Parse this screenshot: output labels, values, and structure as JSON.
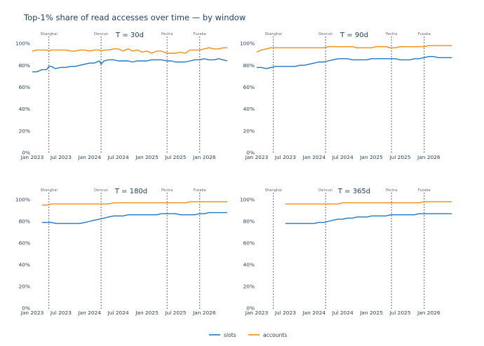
{
  "title": "Top-1% share of read accesses over time — by window",
  "colors": {
    "slots": "#1f77c4",
    "accounts": "#f08c12",
    "event_line": "#555555"
  },
  "legend": [
    {
      "key": "slots",
      "label": "slots"
    },
    {
      "key": "accounts",
      "label": "accounts"
    }
  ],
  "x_ticks": [
    {
      "label": "Jan 2023",
      "t": 2023.0
    },
    {
      "label": "Jul 2023",
      "t": 2023.5
    },
    {
      "label": "Jan 2024",
      "t": 2024.0
    },
    {
      "label": "Jul 2024",
      "t": 2024.5
    },
    {
      "label": "Jan 2025",
      "t": 2025.0
    },
    {
      "label": "Jul 2025",
      "t": 2025.5
    },
    {
      "label": "Jan 2026",
      "t": 2026.0
    }
  ],
  "y_ticks": [
    "0%",
    "20%",
    "40%",
    "60%",
    "80%",
    "100%"
  ],
  "events": [
    {
      "name": "Shanghai",
      "t": 2023.29
    },
    {
      "name": "Dencun",
      "t": 2024.2
    },
    {
      "name": "Pectra",
      "t": 2025.35
    },
    {
      "name": "Fusaka",
      "t": 2025.92
    }
  ],
  "chart_data": [
    {
      "type": "line",
      "title": "T = 30d",
      "xlim": [
        2023.0,
        2026.4
      ],
      "ylim": [
        0,
        100
      ],
      "series": [
        {
          "name": "slots",
          "x": [
            2023.0,
            2023.08,
            2023.17,
            2023.25,
            2023.29,
            2023.33,
            2023.4,
            2023.5,
            2023.58,
            2023.67,
            2023.75,
            2023.83,
            2023.92,
            2024.0,
            2024.08,
            2024.17,
            2024.2,
            2024.25,
            2024.33,
            2024.42,
            2024.5,
            2024.58,
            2024.67,
            2024.75,
            2024.83,
            2024.92,
            2025.0,
            2025.08,
            2025.17,
            2025.25,
            2025.35,
            2025.42,
            2025.5,
            2025.58,
            2025.67,
            2025.75,
            2025.83,
            2025.92,
            2026.0,
            2026.08,
            2026.17,
            2026.25,
            2026.33,
            2026.4
          ],
          "values": [
            74,
            74,
            76,
            76,
            79,
            79,
            77,
            78,
            78,
            79,
            79,
            80,
            81,
            82,
            82,
            84,
            81,
            84,
            85,
            85,
            84,
            84,
            84,
            83,
            84,
            84,
            84,
            85,
            85,
            85,
            84,
            84,
            83,
            83,
            83,
            84,
            85,
            85,
            86,
            85,
            85,
            86,
            85,
            84
          ]
        },
        {
          "name": "accounts",
          "x": [
            2023.0,
            2023.08,
            2023.17,
            2023.25,
            2023.29,
            2023.33,
            2023.4,
            2023.5,
            2023.58,
            2023.67,
            2023.75,
            2023.83,
            2023.92,
            2024.0,
            2024.08,
            2024.17,
            2024.2,
            2024.25,
            2024.33,
            2024.42,
            2024.5,
            2024.58,
            2024.67,
            2024.75,
            2024.83,
            2024.92,
            2025.0,
            2025.08,
            2025.17,
            2025.25,
            2025.35,
            2025.42,
            2025.5,
            2025.58,
            2025.67,
            2025.75,
            2025.83,
            2025.92,
            2026.0,
            2026.08,
            2026.17,
            2026.25,
            2026.33,
            2026.4
          ],
          "values": [
            93,
            94,
            94,
            94,
            93,
            94,
            94,
            94,
            94,
            93,
            93,
            94,
            94,
            93,
            94,
            94,
            93,
            94,
            94,
            95,
            95,
            93,
            95,
            93,
            94,
            92,
            93,
            91,
            93,
            93,
            91,
            91,
            91,
            92,
            91,
            94,
            94,
            94,
            95,
            96,
            95,
            95,
            96,
            96
          ]
        }
      ]
    },
    {
      "type": "line",
      "title": "T = 90d",
      "xlim": [
        2023.0,
        2026.4
      ],
      "ylim": [
        0,
        100
      ],
      "series": [
        {
          "name": "slots",
          "x": [
            2023.0,
            2023.08,
            2023.17,
            2023.25,
            2023.33,
            2023.42,
            2023.5,
            2023.58,
            2023.67,
            2023.75,
            2023.83,
            2023.92,
            2024.0,
            2024.08,
            2024.17,
            2024.25,
            2024.33,
            2024.42,
            2024.5,
            2024.58,
            2024.67,
            2024.75,
            2024.83,
            2024.92,
            2025.0,
            2025.08,
            2025.17,
            2025.25,
            2025.33,
            2025.42,
            2025.5,
            2025.58,
            2025.67,
            2025.75,
            2025.83,
            2025.92,
            2026.0,
            2026.08,
            2026.17,
            2026.25,
            2026.33,
            2026.4
          ],
          "values": [
            78,
            78,
            77,
            78,
            79,
            79,
            79,
            79,
            79,
            80,
            80,
            81,
            82,
            83,
            83,
            84,
            85,
            86,
            86,
            86,
            85,
            85,
            85,
            85,
            86,
            86,
            86,
            86,
            86,
            86,
            85,
            85,
            85,
            86,
            86,
            87,
            88,
            88,
            87,
            87,
            87,
            87
          ]
        },
        {
          "name": "accounts",
          "x": [
            2023.0,
            2023.08,
            2023.17,
            2023.25,
            2023.33,
            2023.42,
            2023.5,
            2023.58,
            2023.67,
            2023.75,
            2023.83,
            2023.92,
            2024.0,
            2024.08,
            2024.17,
            2024.25,
            2024.33,
            2024.42,
            2024.5,
            2024.58,
            2024.67,
            2024.75,
            2024.83,
            2024.92,
            2025.0,
            2025.08,
            2025.17,
            2025.25,
            2025.33,
            2025.42,
            2025.5,
            2025.58,
            2025.67,
            2025.75,
            2025.83,
            2025.92,
            2026.0,
            2026.08,
            2026.17,
            2026.25,
            2026.33,
            2026.4
          ],
          "values": [
            92,
            94,
            95,
            96,
            96,
            96,
            96,
            96,
            96,
            96,
            96,
            96,
            96,
            96,
            96,
            97,
            97,
            97,
            97,
            97,
            97,
            96,
            96,
            96,
            96,
            97,
            97,
            97,
            96,
            96,
            97,
            97,
            97,
            97,
            97,
            97,
            98,
            98,
            98,
            98,
            98,
            98
          ]
        }
      ]
    },
    {
      "type": "line",
      "title": "T = 180d",
      "xlim": [
        2023.0,
        2026.4
      ],
      "ylim": [
        0,
        100
      ],
      "series": [
        {
          "name": "slots",
          "x": [
            2023.17,
            2023.25,
            2023.33,
            2023.42,
            2023.5,
            2023.58,
            2023.67,
            2023.75,
            2023.83,
            2023.92,
            2024.0,
            2024.08,
            2024.17,
            2024.25,
            2024.33,
            2024.42,
            2024.5,
            2024.58,
            2024.67,
            2024.75,
            2024.83,
            2024.92,
            2025.0,
            2025.08,
            2025.17,
            2025.25,
            2025.33,
            2025.42,
            2025.5,
            2025.58,
            2025.67,
            2025.75,
            2025.83,
            2025.92,
            2026.0,
            2026.08,
            2026.17,
            2026.25,
            2026.33,
            2026.4
          ],
          "values": [
            79,
            79,
            79,
            78,
            78,
            78,
            78,
            78,
            78,
            79,
            80,
            81,
            82,
            83,
            84,
            85,
            85,
            85,
            86,
            86,
            86,
            86,
            86,
            86,
            86,
            87,
            87,
            87,
            87,
            86,
            86,
            86,
            86,
            87,
            87,
            88,
            88,
            88,
            88,
            88
          ]
        },
        {
          "name": "accounts",
          "x": [
            2023.17,
            2023.25,
            2023.33,
            2023.42,
            2023.5,
            2023.58,
            2023.67,
            2023.75,
            2023.83,
            2023.92,
            2024.0,
            2024.08,
            2024.17,
            2024.25,
            2024.33,
            2024.42,
            2024.5,
            2024.58,
            2024.67,
            2024.75,
            2024.83,
            2024.92,
            2025.0,
            2025.08,
            2025.17,
            2025.25,
            2025.33,
            2025.42,
            2025.5,
            2025.58,
            2025.67,
            2025.75,
            2025.83,
            2025.92,
            2026.0,
            2026.08,
            2026.17,
            2026.25,
            2026.33,
            2026.4
          ],
          "values": [
            95,
            95,
            96,
            96,
            96,
            96,
            96,
            96,
            96,
            96,
            96,
            96,
            96,
            96,
            96,
            97,
            97,
            97,
            97,
            97,
            97,
            97,
            97,
            97,
            97,
            97,
            97,
            97,
            97,
            97,
            97,
            98,
            98,
            98,
            98,
            98,
            98,
            98,
            98,
            98
          ]
        }
      ]
    },
    {
      "type": "line",
      "title": "T = 365d",
      "xlim": [
        2023.0,
        2026.4
      ],
      "ylim": [
        0,
        100
      ],
      "series": [
        {
          "name": "slots",
          "x": [
            2023.5,
            2023.58,
            2023.67,
            2023.75,
            2023.83,
            2023.92,
            2024.0,
            2024.08,
            2024.17,
            2024.25,
            2024.33,
            2024.42,
            2024.5,
            2024.58,
            2024.67,
            2024.75,
            2024.83,
            2024.92,
            2025.0,
            2025.08,
            2025.17,
            2025.25,
            2025.33,
            2025.42,
            2025.5,
            2025.58,
            2025.67,
            2025.75,
            2025.83,
            2025.92,
            2026.0,
            2026.08,
            2026.17,
            2026.25,
            2026.33,
            2026.4
          ],
          "values": [
            78,
            78,
            78,
            78,
            78,
            78,
            78,
            79,
            79,
            80,
            81,
            82,
            82,
            83,
            83,
            84,
            84,
            84,
            85,
            85,
            85,
            85,
            86,
            86,
            86,
            86,
            86,
            86,
            87,
            87,
            87,
            87,
            87,
            87,
            87,
            87
          ]
        },
        {
          "name": "accounts",
          "x": [
            2023.5,
            2023.58,
            2023.67,
            2023.75,
            2023.83,
            2023.92,
            2024.0,
            2024.08,
            2024.17,
            2024.25,
            2024.33,
            2024.42,
            2024.5,
            2024.58,
            2024.67,
            2024.75,
            2024.83,
            2024.92,
            2025.0,
            2025.08,
            2025.17,
            2025.25,
            2025.33,
            2025.42,
            2025.5,
            2025.58,
            2025.67,
            2025.75,
            2025.83,
            2025.92,
            2026.0,
            2026.08,
            2026.17,
            2026.25,
            2026.33,
            2026.4
          ],
          "values": [
            96,
            96,
            96,
            96,
            96,
            96,
            96,
            96,
            96,
            96,
            96,
            96,
            97,
            97,
            97,
            97,
            97,
            97,
            97,
            97,
            97,
            97,
            97,
            97,
            97,
            97,
            97,
            97,
            97,
            98,
            98,
            98,
            98,
            98,
            98,
            98
          ]
        }
      ]
    }
  ]
}
